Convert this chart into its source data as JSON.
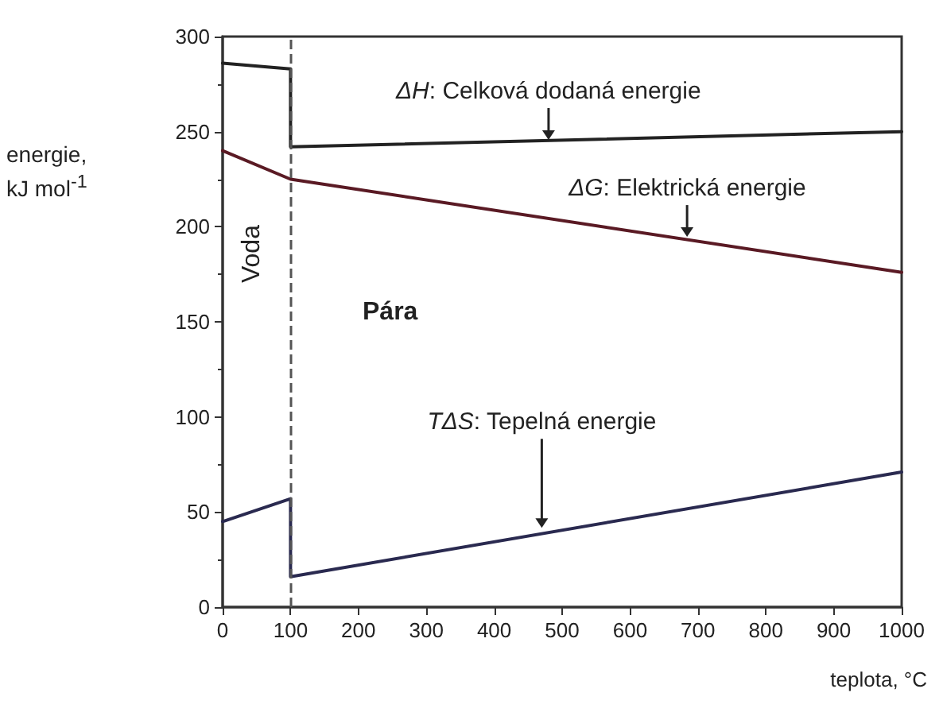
{
  "chart_data": {
    "type": "line",
    "xlabel": "teplota, °C",
    "ylabel": "energie,\nkJ mol$^{-1}$",
    "xlim": [
      0,
      1000
    ],
    "xticks": [
      0,
      100,
      200,
      300,
      400,
      500,
      600,
      700,
      800,
      900,
      1000
    ],
    "ylim": [
      0,
      300
    ],
    "yticks": [
      0,
      50,
      100,
      150,
      200,
      250,
      300
    ],
    "marker": "none",
    "line_style": "solid",
    "series": [
      {
        "color": "#222222",
        "x": [
          0,
          100,
          100,
          1000
        ],
        "values": [
          286,
          283,
          242,
          250
        ]
      },
      {
        "color": "#5a1a24",
        "x": [
          0,
          100,
          1000
        ],
        "values": [
          240,
          225,
          176
        ]
      },
      {
        "color": "#2a2a50",
        "x": [
          0,
          100,
          100,
          1000
        ],
        "values": [
          45,
          57,
          16,
          71
        ]
      }
    ],
    "ref_lines": [
      {
        "axis": "x",
        "value": 100,
        "color": "#555555",
        "line_style": "dashed"
      }
    ],
    "annotations": [
      {
        "text": "ΔH: Celková dodaná energie",
        "x": 480,
        "y": 244
      },
      {
        "text": "ΔG: Elektrická energie",
        "x": 684,
        "y": 193
      },
      {
        "text": "TΔS:  Tepelná energie",
        "x": 470,
        "y": 40
      },
      "Voda",
      "Pára"
    ]
  }
}
